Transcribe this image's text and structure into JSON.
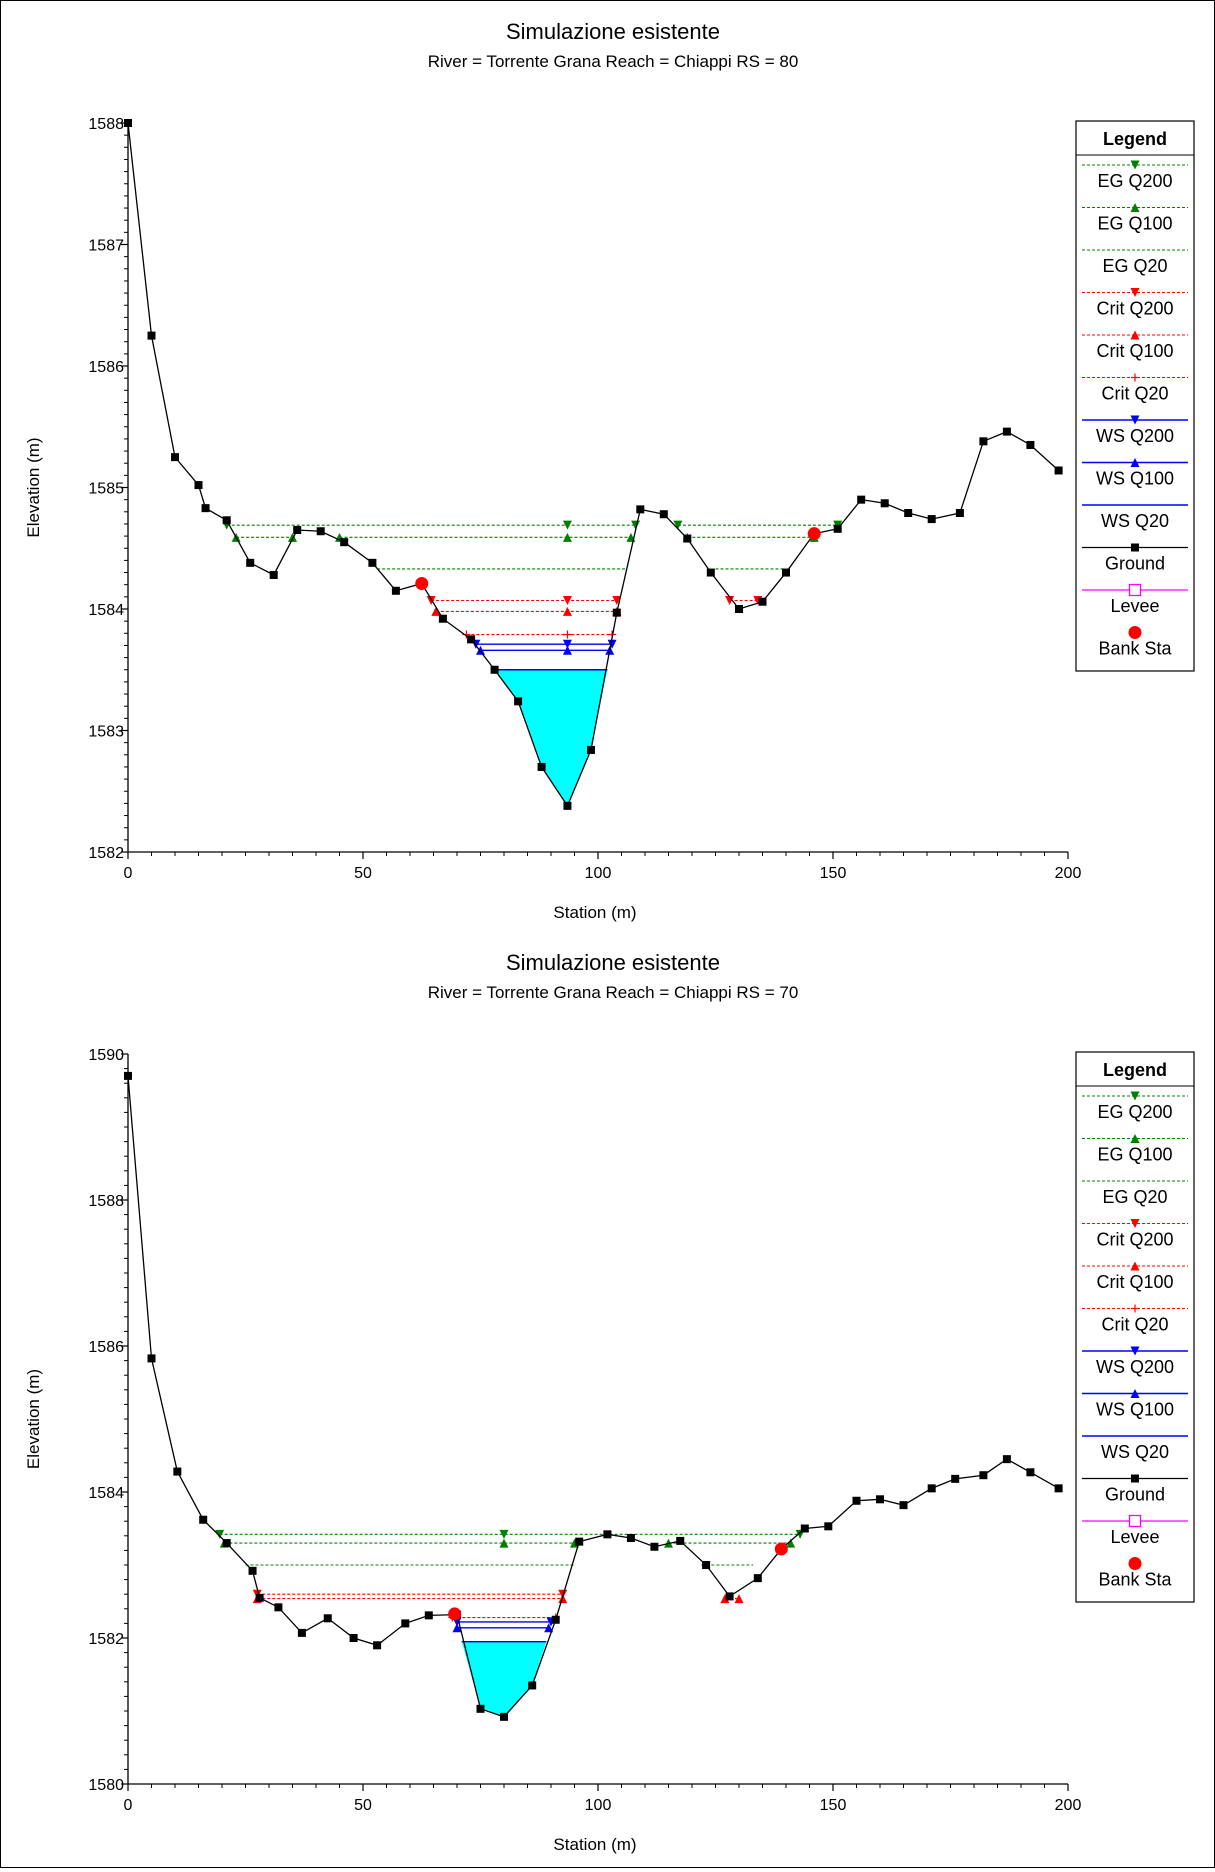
{
  "chart_data": [
    {
      "type": "line",
      "title": "Simulazione esistente",
      "subtitle": "River = Torrente Grana   Reach = Chiappi      RS = 80",
      "xlabel": "Station (m)",
      "ylabel": "Elevation (m)",
      "xlim": [
        0,
        200
      ],
      "ylim": [
        1582,
        1588
      ],
      "x_ticks": [
        "0",
        "50",
        "100",
        "150",
        "200"
      ],
      "y_ticks": [
        "1582",
        "1583",
        "1584",
        "1585",
        "1586",
        "1587",
        "1588"
      ],
      "legend_position": "right",
      "legend_title": "Legend",
      "legend": [
        "EG Q200",
        "EG Q100",
        "EG Q20",
        "Crit Q200",
        "Crit Q100",
        "Crit Q20",
        "WS Q200",
        "WS Q100",
        "WS Q20",
        "Ground",
        "Levee",
        "Bank Sta"
      ],
      "ground": [
        [
          0,
          1588.0
        ],
        [
          5,
          1586.25
        ],
        [
          10,
          1585.25
        ],
        [
          15,
          1585.02
        ],
        [
          16.5,
          1584.83
        ],
        [
          21,
          1584.73
        ],
        [
          26,
          1584.38
        ],
        [
          31,
          1584.28
        ],
        [
          36,
          1584.65
        ],
        [
          41,
          1584.64
        ],
        [
          46,
          1584.55
        ],
        [
          52,
          1584.38
        ],
        [
          57,
          1584.15
        ],
        [
          62.5,
          1584.21
        ],
        [
          67,
          1583.92
        ],
        [
          73,
          1583.75
        ],
        [
          78,
          1583.5
        ],
        [
          83,
          1583.24
        ],
        [
          88,
          1582.7
        ],
        [
          93.5,
          1582.38
        ],
        [
          98.5,
          1582.84
        ],
        [
          104,
          1583.97
        ],
        [
          109,
          1584.82
        ],
        [
          114,
          1584.78
        ],
        [
          119,
          1584.58
        ],
        [
          124,
          1584.3
        ],
        [
          130,
          1584.0
        ],
        [
          135,
          1584.06
        ],
        [
          140,
          1584.3
        ],
        [
          146,
          1584.62
        ],
        [
          151,
          1584.66
        ],
        [
          156,
          1584.9
        ],
        [
          161,
          1584.87
        ],
        [
          166,
          1584.79
        ],
        [
          171,
          1584.74
        ],
        [
          177,
          1584.79
        ],
        [
          182,
          1585.38
        ],
        [
          187,
          1585.46
        ],
        [
          192,
          1585.35
        ],
        [
          198,
          1585.14
        ]
      ],
      "bank_stations": [
        [
          62.5,
          1584.21
        ],
        [
          146,
          1584.62
        ]
      ],
      "profiles": [
        {
          "name": "EG Q200",
          "elev": 1584.69,
          "segments": [
            [
              21,
              108
            ],
            [
              117,
              151
            ]
          ]
        },
        {
          "name": "EG Q100",
          "elev": 1584.59,
          "segments": [
            [
              23,
              35
            ],
            [
              45,
              107
            ],
            [
              119,
              146
            ]
          ]
        },
        {
          "name": "EG Q20",
          "elev": 1584.33,
          "segments": [
            [
              53,
              106
            ],
            [
              125,
              140
            ]
          ]
        },
        {
          "name": "Crit Q200",
          "elev": 1584.07,
          "segments": [
            [
              64.5,
              104
            ],
            [
              128,
              134
            ]
          ]
        },
        {
          "name": "Crit Q100",
          "elev": 1583.98,
          "segments": [
            [
              65.5,
              104
            ]
          ]
        },
        {
          "name": "Crit Q20",
          "elev": 1583.79,
          "segments": [
            [
              72,
              103
            ]
          ]
        },
        {
          "name": "WS Q200",
          "elev": 1583.71,
          "segments": [
            [
              74,
              103
            ]
          ]
        },
        {
          "name": "WS Q100",
          "elev": 1583.66,
          "segments": [
            [
              75,
              102.5
            ]
          ]
        },
        {
          "name": "WS Q20",
          "elev": 1583.5,
          "segments": [
            [
              78,
              102
            ]
          ]
        }
      ],
      "water_fill": {
        "elev": 1583.5,
        "x_left": 78,
        "x_right": 102
      }
    },
    {
      "type": "line",
      "title": "Simulazione esistente",
      "subtitle": "River = Torrente Grana   Reach = Chiappi      RS = 70",
      "xlabel": "Station (m)",
      "ylabel": "Elevation (m)",
      "xlim": [
        0,
        200
      ],
      "ylim": [
        1580,
        1590
      ],
      "x_ticks": [
        "0",
        "50",
        "100",
        "150",
        "200"
      ],
      "y_ticks": [
        "1580",
        "1582",
        "1584",
        "1586",
        "1588",
        "1590"
      ],
      "legend_position": "right",
      "legend_title": "Legend",
      "legend": [
        "EG Q200",
        "EG Q100",
        "EG Q20",
        "Crit Q200",
        "Crit Q100",
        "Crit Q20",
        "WS Q200",
        "WS Q100",
        "WS Q20",
        "Ground",
        "Levee",
        "Bank Sta"
      ],
      "ground": [
        [
          0,
          1589.7
        ],
        [
          5,
          1585.83
        ],
        [
          10.5,
          1584.28
        ],
        [
          16,
          1583.62
        ],
        [
          21,
          1583.3
        ],
        [
          26.5,
          1582.92
        ],
        [
          28,
          1582.55
        ],
        [
          32,
          1582.42
        ],
        [
          37,
          1582.07
        ],
        [
          42.5,
          1582.27
        ],
        [
          48,
          1582.0
        ],
        [
          53,
          1581.9
        ],
        [
          59,
          1582.2
        ],
        [
          64,
          1582.31
        ],
        [
          70,
          1582.32
        ],
        [
          75,
          1581.03
        ],
        [
          80,
          1580.92
        ],
        [
          86,
          1581.35
        ],
        [
          91,
          1582.25
        ],
        [
          96,
          1583.32
        ],
        [
          102,
          1583.42
        ],
        [
          107,
          1583.37
        ],
        [
          112,
          1583.25
        ],
        [
          117.5,
          1583.33
        ],
        [
          123,
          1583.0
        ],
        [
          128,
          1582.57
        ],
        [
          134,
          1582.82
        ],
        [
          139,
          1583.22
        ],
        [
          144,
          1583.5
        ],
        [
          149,
          1583.53
        ],
        [
          155,
          1583.88
        ],
        [
          160,
          1583.9
        ],
        [
          165,
          1583.82
        ],
        [
          171,
          1584.05
        ],
        [
          176,
          1584.18
        ],
        [
          182,
          1584.23
        ],
        [
          187,
          1584.45
        ],
        [
          192,
          1584.27
        ],
        [
          198,
          1584.05
        ]
      ],
      "bank_stations": [
        [
          69.5,
          1582.33
        ],
        [
          139,
          1583.22
        ]
      ],
      "profiles": [
        {
          "name": "EG Q200",
          "elev": 1583.42,
          "segments": [
            [
              19.5,
              143
            ]
          ]
        },
        {
          "name": "EG Q100",
          "elev": 1583.3,
          "segments": [
            [
              20.5,
              95
            ],
            [
              115,
              141
            ]
          ]
        },
        {
          "name": "EG Q20",
          "elev": 1583.0,
          "segments": [
            [
              25,
              95
            ],
            [
              122,
              133
            ]
          ]
        },
        {
          "name": "Crit Q200",
          "elev": 1582.6,
          "segments": [
            [
              27.5,
              92.5
            ]
          ]
        },
        {
          "name": "Crit Q100",
          "elev": 1582.54,
          "segments": [
            [
              27.5,
              92.5
            ],
            [
              127,
              130
            ]
          ]
        },
        {
          "name": "Crit Q20",
          "elev": 1582.28,
          "segments": [
            [
              69,
              91
            ]
          ]
        },
        {
          "name": "WS Q200",
          "elev": 1582.22,
          "segments": [
            [
              70,
              90
            ]
          ]
        },
        {
          "name": "WS Q100",
          "elev": 1582.14,
          "segments": [
            [
              70,
              89.5
            ]
          ]
        },
        {
          "name": "WS Q20",
          "elev": 1581.95,
          "segments": [
            [
              71,
              89
            ]
          ]
        }
      ],
      "water_fill": {
        "elev": 1581.95,
        "x_left": 71,
        "x_right": 89
      }
    }
  ],
  "styles": {
    "eg_color": "#008000",
    "crit_color": "#ff0000",
    "ws_color": "#0000ff",
    "ground_color": "#000000",
    "levee_color": "#ff00ff",
    "bank_color": "#ff0000",
    "water_color": "#00ffff"
  }
}
